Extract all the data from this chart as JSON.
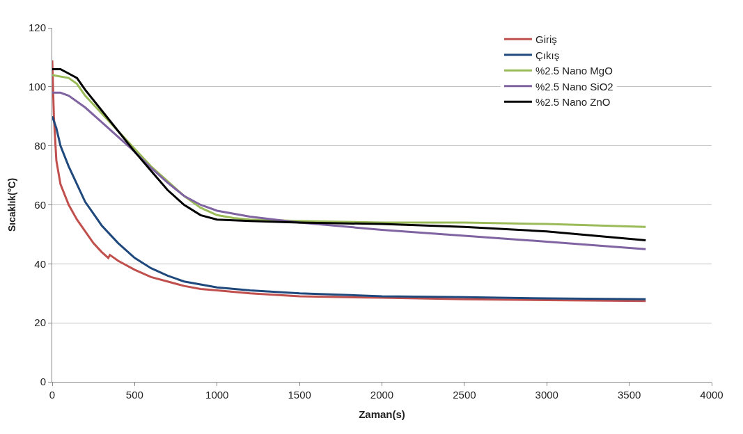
{
  "chart_data": {
    "type": "line",
    "xlabel": "Zaman(s)",
    "ylabel": "Sıcaklık(°C)",
    "xlim": [
      0,
      4000
    ],
    "xticks": [
      0,
      500,
      1000,
      1500,
      2000,
      2500,
      3000,
      3500,
      4000
    ],
    "ylim": [
      0,
      120
    ],
    "yticks": [
      0,
      20,
      40,
      60,
      80,
      100,
      120
    ],
    "grid": "y",
    "legend": "top right",
    "marker": "none",
    "line_style": "solid",
    "series": [
      {
        "name": "Giriş",
        "color": "#c0504d",
        "x": [
          0,
          10,
          25,
          50,
          100,
          150,
          200,
          250,
          300,
          340,
          350,
          400,
          500,
          600,
          700,
          800,
          900,
          1000,
          1200,
          1500,
          2000,
          2500,
          3000,
          3600
        ],
        "values": [
          109,
          90,
          75,
          67,
          60,
          55,
          51,
          47,
          44,
          42,
          43,
          41,
          38,
          35.5,
          34,
          32.5,
          31.5,
          31,
          30,
          29,
          28.5,
          28,
          27.7,
          27.4
        ]
      },
      {
        "name": "Çıkış",
        "color": "#1f497d",
        "x": [
          0,
          25,
          50,
          100,
          150,
          200,
          250,
          300,
          400,
          500,
          600,
          700,
          800,
          900,
          1000,
          1200,
          1500,
          2000,
          2500,
          3000,
          3600
        ],
        "values": [
          90,
          86,
          80,
          73,
          67,
          61,
          57,
          53,
          47,
          42,
          38.5,
          36,
          34,
          33,
          32,
          31,
          30,
          29,
          28.7,
          28.3,
          28
        ]
      },
      {
        "name": "%2.5 Nano MgO",
        "color": "#9bbb59",
        "x": [
          0,
          100,
          150,
          200,
          300,
          400,
          500,
          600,
          700,
          800,
          900,
          1000,
          1100,
          1200,
          1500,
          2000,
          2500,
          3000,
          3600
        ],
        "values": [
          104,
          103,
          101,
          97,
          91,
          85,
          79,
          73,
          68,
          63,
          59,
          56.5,
          55.5,
          55,
          54.5,
          54,
          54,
          53.5,
          52.5
        ]
      },
      {
        "name": "%2.5 Nano SiO2",
        "color": "#8064a2",
        "x": [
          0,
          50,
          100,
          200,
          300,
          400,
          500,
          600,
          700,
          800,
          900,
          1000,
          1200,
          1500,
          2000,
          2500,
          3000,
          3600
        ],
        "values": [
          98,
          98,
          97,
          93,
          88,
          83,
          78,
          72.5,
          67.5,
          63,
          60,
          58,
          56,
          54,
          51.5,
          49.5,
          47.5,
          45
        ]
      },
      {
        "name": "%2.5 Nano ZnO",
        "color": "#000000",
        "x": [
          0,
          50,
          100,
          150,
          200,
          300,
          400,
          500,
          600,
          700,
          800,
          900,
          1000,
          1200,
          1500,
          2000,
          2500,
          3000,
          3600
        ],
        "values": [
          106,
          106,
          104.5,
          103,
          99,
          92,
          85,
          78,
          71.5,
          65,
          60,
          56.5,
          55,
          54.5,
          54,
          53.5,
          52.5,
          51,
          48
        ]
      }
    ]
  }
}
